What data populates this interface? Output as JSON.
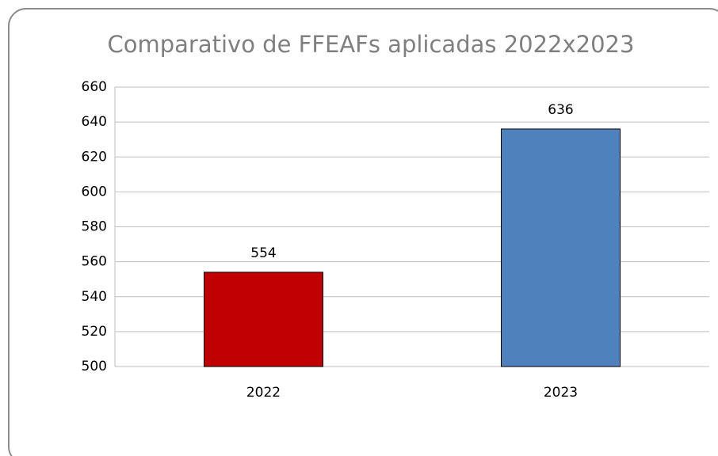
{
  "chart_data": {
    "type": "bar",
    "title": "Comparativo de FFEAFs aplicadas 2022x2023",
    "categories": [
      "2022",
      "2023"
    ],
    "values": [
      554,
      636
    ],
    "colors": [
      "#c00000",
      "#4f81bd"
    ],
    "ylim": [
      500,
      660
    ],
    "yticks": [
      500,
      520,
      540,
      560,
      580,
      600,
      620,
      640,
      660
    ],
    "grid": true
  }
}
